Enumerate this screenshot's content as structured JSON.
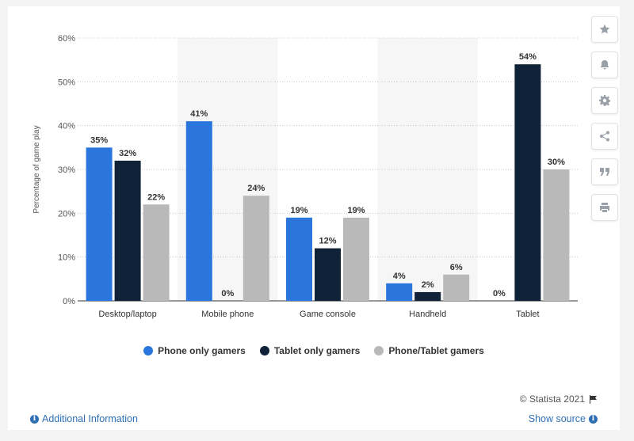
{
  "chart_data": {
    "type": "bar",
    "categories": [
      "Desktop/laptop",
      "Mobile phone",
      "Game console",
      "Handheld",
      "Tablet"
    ],
    "series": [
      {
        "name": "Phone only gamers",
        "values": [
          35,
          41,
          19,
          4,
          0
        ],
        "color": "#2a76dd"
      },
      {
        "name": "Tablet only gamers",
        "values": [
          32,
          0,
          12,
          2,
          54
        ],
        "color": "#0f2237"
      },
      {
        "name": "Phone/Tablet gamers",
        "values": [
          22,
          24,
          19,
          6,
          30
        ],
        "color": "#b9b9b9"
      }
    ],
    "data_labels": [
      [
        "35%",
        "41%",
        "19%",
        "4%",
        "0%"
      ],
      [
        "32%",
        "0%",
        "12%",
        "2%",
        "54%"
      ],
      [
        "22%",
        "24%",
        "19%",
        "6%",
        "30%"
      ]
    ],
    "ylabel": "Percentage of game play",
    "xlabel": "",
    "ylim": [
      0,
      60
    ],
    "yticks": [
      0,
      10,
      20,
      30,
      40,
      50,
      60
    ],
    "ytick_labels": [
      "0%",
      "10%",
      "20%",
      "30%",
      "40%",
      "50%",
      "60%"
    ],
    "grid": true,
    "legend_position": "bottom"
  },
  "toolbar": {
    "icons": [
      "star-icon",
      "bell-icon",
      "gear-icon",
      "share-icon",
      "quote-icon",
      "print-icon"
    ]
  },
  "footer": {
    "credit": "© Statista 2021",
    "additional_info": "Additional Information",
    "show_source": "Show source"
  }
}
